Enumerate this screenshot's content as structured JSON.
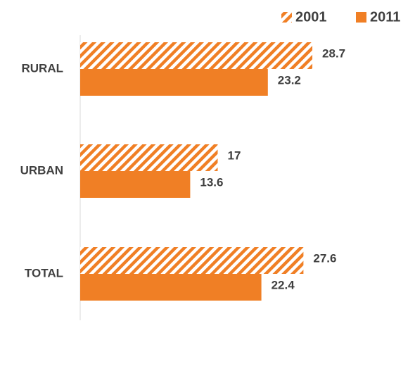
{
  "chart_data": {
    "type": "bar",
    "orientation": "horizontal",
    "categories": [
      "RURAL",
      "URBAN",
      "TOTAL"
    ],
    "series": [
      {
        "name": "2001",
        "color": "#f07f25",
        "pattern": "hatch",
        "values": [
          28.7,
          17,
          27.6
        ]
      },
      {
        "name": "2011",
        "color": "#f07f25",
        "pattern": "solid",
        "values": [
          23.2,
          13.6,
          22.4
        ]
      }
    ],
    "legend": "top-right"
  }
}
